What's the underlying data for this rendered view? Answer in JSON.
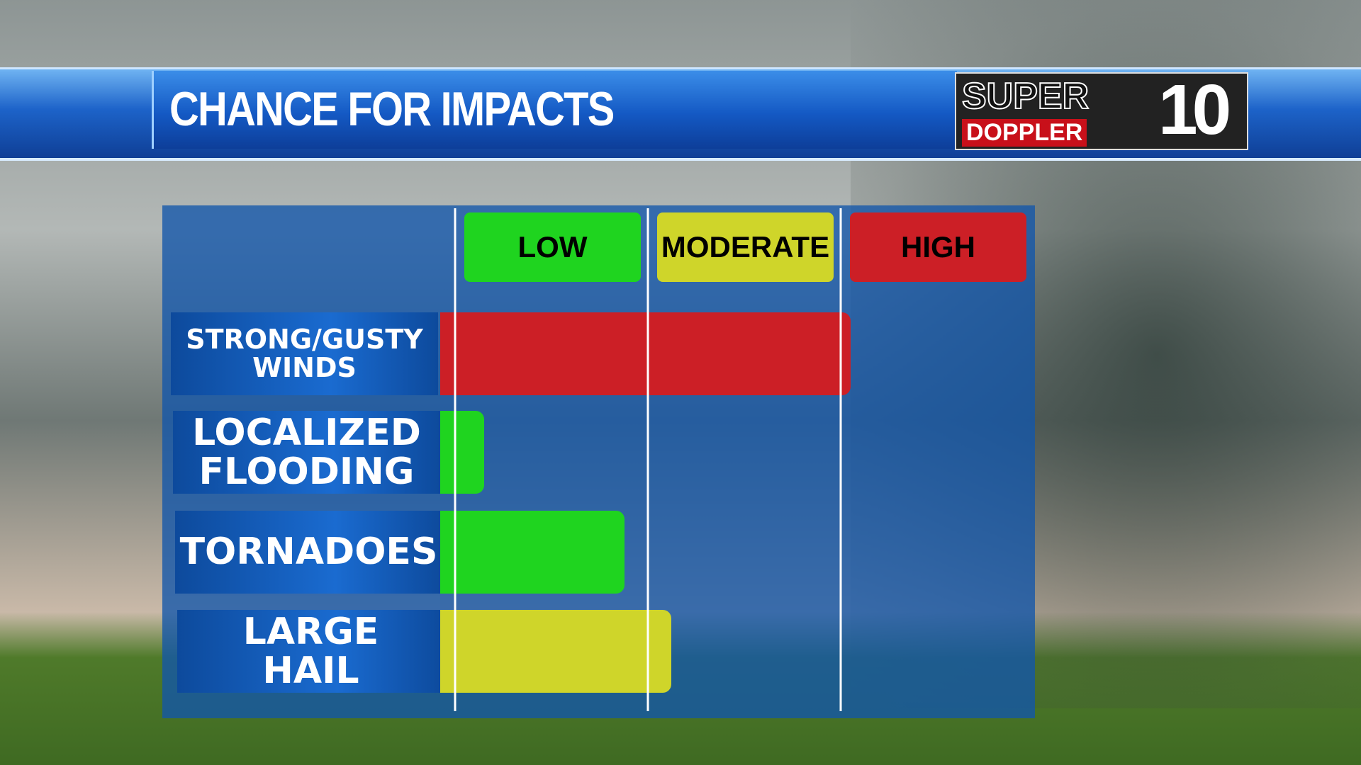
{
  "header": {
    "title": "CHANCE FOR IMPACTS"
  },
  "logo": {
    "line1": "SUPER",
    "line2": "DOPPLER",
    "number": "10"
  },
  "chart_data": {
    "type": "bar",
    "orientation": "horizontal",
    "levels": [
      {
        "label": "LOW",
        "color": "#1fd41f"
      },
      {
        "label": "MODERATE",
        "color": "#cfd52a"
      },
      {
        "label": "HIGH",
        "color": "#cc1f26"
      }
    ],
    "categories": [
      "STRONG/GUSTY\nWINDS",
      "LOCALIZED\nFLOODING",
      "TORNADOES",
      "LARGE\nHAIL"
    ],
    "values": [
      2.05,
      0.15,
      0.88,
      1.12
    ],
    "colors": [
      "#cc1f26",
      "#1fd41f",
      "#1fd41f",
      "#cfd52a"
    ],
    "xlim": [
      0,
      3
    ],
    "xticks": [
      0,
      1,
      2
    ],
    "grid": true
  }
}
